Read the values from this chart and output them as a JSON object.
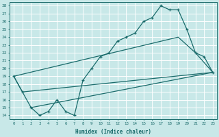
{
  "xlabel": "Humidex (Indice chaleur)",
  "bg_color": "#c8e8e8",
  "line_color": "#1a6b6b",
  "grid_color": "#ffffff",
  "xlim": [
    -0.5,
    23.5
  ],
  "ylim": [
    13.5,
    28.5
  ],
  "xticks": [
    0,
    1,
    2,
    3,
    4,
    5,
    6,
    7,
    8,
    9,
    10,
    11,
    12,
    13,
    14,
    15,
    16,
    17,
    18,
    19,
    20,
    21,
    22,
    23
  ],
  "yticks": [
    14,
    15,
    16,
    17,
    18,
    19,
    20,
    21,
    22,
    23,
    24,
    25,
    26,
    27,
    28
  ],
  "line1_x": [
    0,
    1,
    2,
    3,
    4,
    5,
    6,
    7,
    8,
    9,
    10,
    11,
    12,
    13,
    14,
    15,
    16,
    17,
    18,
    19,
    20,
    21,
    22,
    23
  ],
  "line1_y": [
    19.0,
    17.0,
    15.0,
    14.0,
    14.5,
    16.0,
    14.5,
    14.0,
    18.5,
    20.0,
    21.5,
    22.0,
    23.5,
    24.0,
    24.5,
    26.0,
    26.5,
    28.0,
    27.5,
    27.5,
    25.0,
    22.0,
    21.5,
    19.5
  ],
  "line2_x": [
    0,
    1,
    23
  ],
  "line2_y": [
    19.0,
    17.0,
    19.5
  ],
  "line3_x": [
    2,
    23
  ],
  "line3_y": [
    15.0,
    19.5
  ],
  "line4_x": [
    0,
    19,
    21,
    23
  ],
  "line4_y": [
    19.0,
    24.0,
    22.0,
    19.5
  ]
}
